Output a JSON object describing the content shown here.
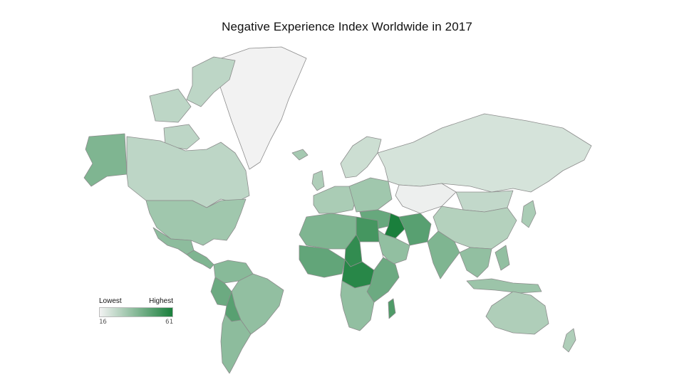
{
  "title": "Negative Experience Index Worldwide in 2017",
  "legend": {
    "low_label": "Lowest",
    "high_label": "Highest",
    "min": "16",
    "max": "61",
    "color_low": "#f2f2f2",
    "color_high": "#1a7f3c"
  },
  "map_projection": "mercator",
  "regions": [
    {
      "id": "greenland",
      "value": 16
    },
    {
      "id": "alaska",
      "value": 40
    },
    {
      "id": "canada",
      "value": 27
    },
    {
      "id": "arctic-islands",
      "value": 27
    },
    {
      "id": "usa",
      "value": 33
    },
    {
      "id": "mexico",
      "value": 37
    },
    {
      "id": "central-america",
      "value": 40
    },
    {
      "id": "colombia-venezuela",
      "value": 38
    },
    {
      "id": "brazil",
      "value": 36
    },
    {
      "id": "peru",
      "value": 44
    },
    {
      "id": "bolivia",
      "value": 48
    },
    {
      "id": "argentina-chile",
      "value": 37
    },
    {
      "id": "europe-west",
      "value": 31
    },
    {
      "id": "scandinavia",
      "value": 24
    },
    {
      "id": "iceland",
      "value": 32
    },
    {
      "id": "uk",
      "value": 30
    },
    {
      "id": "eastern-europe",
      "value": 33
    },
    {
      "id": "russia",
      "value": 22
    },
    {
      "id": "kazakhstan",
      "value": 17
    },
    {
      "id": "mongolia",
      "value": 26
    },
    {
      "id": "china",
      "value": 29
    },
    {
      "id": "japan",
      "value": 31
    },
    {
      "id": "middle-east",
      "value": 45
    },
    {
      "id": "iraq",
      "value": 61
    },
    {
      "id": "iran",
      "value": 48
    },
    {
      "id": "saudi-arabia",
      "value": 36
    },
    {
      "id": "india",
      "value": 40
    },
    {
      "id": "southeast-asia",
      "value": 36
    },
    {
      "id": "indonesia",
      "value": 34
    },
    {
      "id": "north-africa-west",
      "value": 40
    },
    {
      "id": "egypt",
      "value": 52
    },
    {
      "id": "chad",
      "value": 56
    },
    {
      "id": "central-africa",
      "value": 58
    },
    {
      "id": "west-africa",
      "value": 46
    },
    {
      "id": "east-africa",
      "value": 44
    },
    {
      "id": "southern-africa",
      "value": 36
    },
    {
      "id": "madagascar",
      "value": 50
    },
    {
      "id": "australia",
      "value": 30
    },
    {
      "id": "new-zealand",
      "value": 30
    }
  ]
}
